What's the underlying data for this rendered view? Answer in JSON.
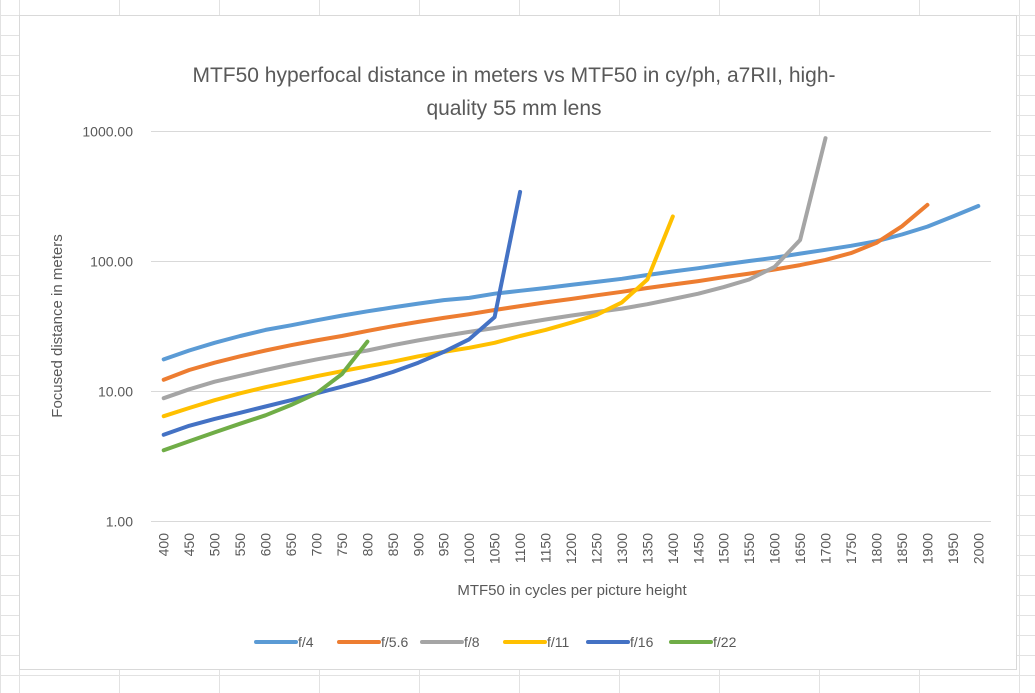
{
  "chart_data": {
    "type": "line",
    "title": "MTF50 hyperfocal distance in meters vs MTF50 in cy/ph, a7RII, high-quality 55 mm lens",
    "title_lines": [
      "MTF50 hyperfocal distance in meters vs MTF50 in cy/ph, a7RII, high-",
      "quality 55 mm lens"
    ],
    "xlabel": "MTF50 in cycles per picture height",
    "ylabel": "Focused distance in meters",
    "y_scale": "log",
    "ylim": [
      1,
      1000
    ],
    "y_ticks": [
      1,
      10,
      100,
      1000
    ],
    "y_tick_labels": [
      "1.00",
      "10.00",
      "100.00",
      "1000.00"
    ],
    "grid": true,
    "legend_position": "bottom",
    "categories": [
      "400",
      "450",
      "500",
      "550",
      "600",
      "650",
      "700",
      "750",
      "800",
      "850",
      "900",
      "950",
      "1000",
      "1050",
      "1100",
      "1150",
      "1200",
      "1250",
      "1300",
      "1350",
      "1400",
      "1450",
      "1500",
      "1550",
      "1600",
      "1650",
      "1700",
      "1750",
      "1800",
      "1850",
      "1900",
      "1950",
      "2000"
    ],
    "series": [
      {
        "name": "f/4",
        "color": "#5b9bd5",
        "values": [
          17.5,
          20.5,
          23.5,
          26.5,
          29.5,
          32,
          35,
          38,
          41,
          44,
          47,
          50,
          52,
          56,
          59,
          62,
          65.5,
          69,
          73,
          78,
          83,
          88,
          94,
          100,
          106,
          114,
          122,
          131,
          142,
          160,
          184,
          220,
          265
        ]
      },
      {
        "name": "f/5.6",
        "color": "#ed7d31",
        "values": [
          12.2,
          14.5,
          16.5,
          18.5,
          20.5,
          22.5,
          24.5,
          26.5,
          29,
          31.5,
          34,
          36.5,
          39,
          42,
          45,
          48,
          51,
          54.5,
          58,
          62,
          66,
          70,
          75,
          80,
          86,
          93,
          102,
          115,
          138,
          185,
          270,
          null,
          null
        ]
      },
      {
        "name": "f/8",
        "color": "#a5a5a5",
        "values": [
          8.8,
          10.3,
          11.8,
          13.1,
          14.5,
          16,
          17.5,
          19,
          20.5,
          22.5,
          24.5,
          26.5,
          28.5,
          30.5,
          33,
          35.5,
          38,
          40.5,
          43,
          46.5,
          51,
          56,
          63,
          72,
          90,
          145,
          880,
          null,
          null,
          null,
          null,
          null,
          null
        ]
      },
      {
        "name": "f/11",
        "color": "#ffc000",
        "values": [
          6.4,
          7.4,
          8.5,
          9.6,
          10.7,
          11.8,
          13,
          14.2,
          15.5,
          16.8,
          18.5,
          20,
          21.5,
          23.5,
          26.5,
          29.5,
          33.5,
          38.5,
          48,
          72,
          220,
          null,
          null,
          null,
          null,
          null,
          null,
          null,
          null,
          null,
          null,
          null,
          null
        ]
      },
      {
        "name": "f/16",
        "color": "#4472c4",
        "values": [
          4.6,
          5.4,
          6.1,
          6.8,
          7.6,
          8.5,
          9.6,
          10.8,
          12.2,
          14,
          16.5,
          20,
          25,
          37,
          340,
          null,
          null,
          null,
          null,
          null,
          null,
          null,
          null,
          null,
          null,
          null,
          null,
          null,
          null,
          null,
          null,
          null,
          null
        ]
      },
      {
        "name": "f/22",
        "color": "#70ad47",
        "values": [
          3.5,
          4.1,
          4.8,
          5.6,
          6.5,
          7.8,
          9.6,
          13.5,
          24,
          null,
          null,
          null,
          null,
          null,
          null,
          null,
          null,
          null,
          null,
          null,
          null,
          null,
          null,
          null,
          null,
          null,
          null,
          null,
          null,
          null,
          null,
          null,
          null
        ]
      }
    ]
  }
}
